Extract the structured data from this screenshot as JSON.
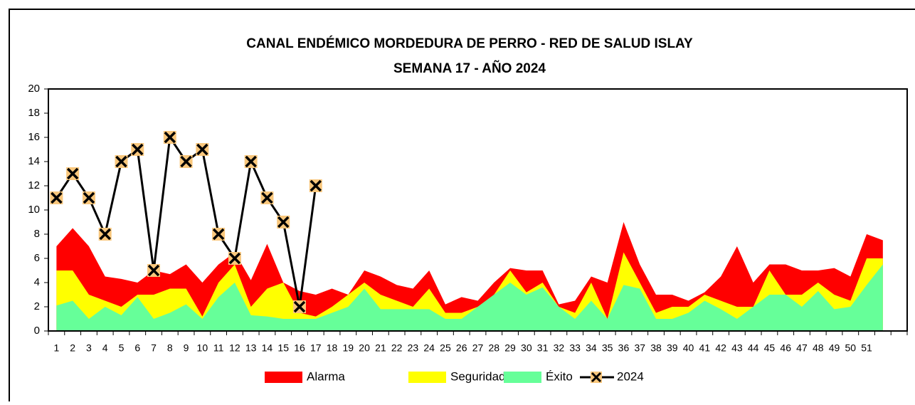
{
  "chart_data": {
    "type": "area",
    "title": [
      "CANAL ENDÉMICO MORDEDURA DE PERRO - RED DE SALUD ISLAY",
      "SEMANA 17 -  AÑO 2024"
    ],
    "categories": [
      "1",
      "2",
      "3",
      "4",
      "5",
      "6",
      "7",
      "8",
      "9",
      "10",
      "11",
      "12",
      "13",
      "14",
      "15",
      "16",
      "17",
      "18",
      "19",
      "20",
      "21",
      "22",
      "23",
      "24",
      "25",
      "26",
      "27",
      "28",
      "29",
      "30",
      "31",
      "32",
      "33",
      "34",
      "35",
      "36",
      "37",
      "38",
      "39",
      "40",
      "41",
      "42",
      "43",
      "44",
      "45",
      "46",
      "47",
      "48",
      "49",
      "50",
      "51",
      null,
      null
    ],
    "series": [
      {
        "name": "Alarma",
        "color": "#ff0000",
        "values": [
          7,
          8.5,
          7,
          4.5,
          4.3,
          4,
          5,
          4.7,
          5.5,
          4,
          5.5,
          6.5,
          4.2,
          7.2,
          4,
          3.3,
          3,
          3.5,
          3,
          5,
          4.5,
          3.8,
          3.5,
          5,
          2.2,
          2.8,
          2.5,
          4,
          5.2,
          5,
          5,
          2.2,
          2.5,
          4.5,
          4,
          9,
          5.5,
          3,
          3,
          2.5,
          3.2,
          4.5,
          7,
          4,
          5.5,
          5.5,
          5,
          5,
          5.2,
          4.5,
          8,
          7.5,
          null
        ]
      },
      {
        "name": "Seguridad",
        "color": "#ffff00",
        "values": [
          5,
          5,
          3,
          2.5,
          2,
          3,
          3,
          3.5,
          3.5,
          1.2,
          4,
          5.5,
          2,
          3.5,
          4,
          1.5,
          1.2,
          2,
          3,
          4,
          3,
          2.5,
          2,
          3.5,
          1.5,
          1.5,
          2,
          3,
          5,
          3.2,
          4,
          2,
          1.5,
          4,
          1,
          6.5,
          4,
          1.5,
          2,
          2,
          3,
          2.5,
          2,
          2,
          5,
          3,
          3,
          4,
          3,
          2.5,
          6,
          6,
          null
        ]
      },
      {
        "name": "Éxito",
        "color": "#66ff99",
        "values": [
          2.1,
          2.5,
          1,
          2,
          1.3,
          2.8,
          1,
          1.5,
          2.2,
          1,
          2.8,
          4,
          1.3,
          1.2,
          1,
          1,
          1,
          1.5,
          2,
          3.5,
          1.8,
          1.8,
          1.8,
          1.8,
          1,
          1,
          2,
          3,
          4,
          3,
          3.6,
          2,
          1,
          2.5,
          1,
          3.8,
          3.5,
          1,
          1,
          1.5,
          2.5,
          1.8,
          1,
          2,
          3,
          3,
          2,
          3.3,
          1.8,
          2,
          3.8,
          5.5,
          null
        ]
      },
      {
        "name": "2024",
        "type": "line",
        "color": "#000000",
        "marker_color": "#f9c77c",
        "values": [
          11,
          13,
          11,
          8,
          14,
          15,
          5,
          16,
          14,
          15,
          8,
          6,
          14,
          11,
          9,
          2,
          12,
          null,
          null,
          null,
          null,
          null,
          null,
          null,
          null,
          null,
          null,
          null,
          null,
          null,
          null,
          null,
          null,
          null,
          null,
          null,
          null,
          null,
          null,
          null,
          null,
          null,
          null,
          null,
          null,
          null,
          null,
          null,
          null,
          null,
          null,
          null,
          null
        ]
      }
    ],
    "ylim": [
      0,
      20
    ],
    "yticks": [
      0,
      2,
      4,
      6,
      8,
      10,
      12,
      14,
      16,
      18,
      20
    ],
    "grid": false,
    "legend": "bottom"
  }
}
